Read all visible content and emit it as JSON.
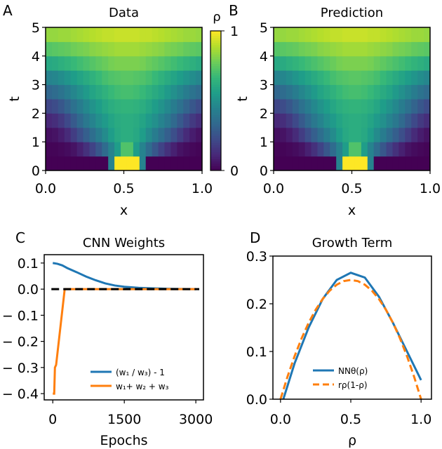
{
  "chart_data": [
    {
      "panel": "A",
      "type": "heatmap",
      "title": "Data",
      "xlabel": "x",
      "ylabel": "t",
      "xlim": [
        0,
        1
      ],
      "ylim": [
        0,
        5
      ],
      "xticks": [
        "0.0",
        "0.5",
        "1.0"
      ],
      "yticks": [
        "0",
        "1",
        "2",
        "3",
        "4",
        "5"
      ],
      "colormap": "viridis",
      "colorbar": {
        "label": "ρ",
        "ticks": [
          "0",
          "1"
        ],
        "range": [
          0,
          1
        ]
      },
      "z_rows_bottom_to_top": [
        [
          0,
          0,
          0,
          0,
          0,
          0,
          0,
          0,
          0,
          0,
          0.45,
          1,
          1,
          1,
          1,
          0.45,
          0,
          0,
          0,
          0,
          0,
          0,
          0,
          0,
          0
        ],
        [
          0.01,
          0.01,
          0.02,
          0.03,
          0.05,
          0.09,
          0.14,
          0.2,
          0.27,
          0.35,
          0.45,
          0.55,
          0.72,
          0.72,
          0.55,
          0.45,
          0.35,
          0.27,
          0.2,
          0.14,
          0.09,
          0.05,
          0.03,
          0.02,
          0.01
        ],
        [
          0.04,
          0.05,
          0.08,
          0.12,
          0.18,
          0.24,
          0.3,
          0.36,
          0.42,
          0.48,
          0.55,
          0.6,
          0.62,
          0.62,
          0.6,
          0.55,
          0.48,
          0.42,
          0.36,
          0.3,
          0.24,
          0.18,
          0.12,
          0.08,
          0.05
        ],
        [
          0.11,
          0.13,
          0.17,
          0.22,
          0.28,
          0.34,
          0.4,
          0.45,
          0.5,
          0.54,
          0.58,
          0.61,
          0.62,
          0.62,
          0.61,
          0.58,
          0.54,
          0.5,
          0.45,
          0.4,
          0.34,
          0.28,
          0.22,
          0.17,
          0.13
        ],
        [
          0.21,
          0.23,
          0.27,
          0.32,
          0.37,
          0.42,
          0.47,
          0.51,
          0.55,
          0.59,
          0.62,
          0.64,
          0.65,
          0.65,
          0.64,
          0.62,
          0.59,
          0.55,
          0.51,
          0.47,
          0.42,
          0.37,
          0.32,
          0.27,
          0.23
        ],
        [
          0.33,
          0.35,
          0.38,
          0.42,
          0.46,
          0.5,
          0.54,
          0.58,
          0.61,
          0.64,
          0.67,
          0.69,
          0.7,
          0.7,
          0.69,
          0.67,
          0.64,
          0.61,
          0.58,
          0.54,
          0.5,
          0.46,
          0.42,
          0.38,
          0.35
        ],
        [
          0.45,
          0.46,
          0.49,
          0.52,
          0.55,
          0.58,
          0.61,
          0.64,
          0.67,
          0.7,
          0.72,
          0.73,
          0.74,
          0.74,
          0.73,
          0.72,
          0.7,
          0.67,
          0.64,
          0.61,
          0.58,
          0.55,
          0.52,
          0.49,
          0.46
        ],
        [
          0.6,
          0.61,
          0.63,
          0.65,
          0.67,
          0.69,
          0.71,
          0.73,
          0.75,
          0.77,
          0.79,
          0.8,
          0.8,
          0.8,
          0.8,
          0.79,
          0.77,
          0.75,
          0.73,
          0.71,
          0.69,
          0.67,
          0.65,
          0.63,
          0.61
        ],
        [
          0.73,
          0.74,
          0.75,
          0.76,
          0.78,
          0.79,
          0.8,
          0.82,
          0.83,
          0.84,
          0.85,
          0.86,
          0.86,
          0.86,
          0.86,
          0.85,
          0.84,
          0.83,
          0.82,
          0.8,
          0.79,
          0.78,
          0.76,
          0.75,
          0.74
        ],
        [
          0.84,
          0.84,
          0.85,
          0.85,
          0.86,
          0.87,
          0.88,
          0.89,
          0.9,
          0.91,
          0.91,
          0.92,
          0.92,
          0.92,
          0.92,
          0.91,
          0.91,
          0.9,
          0.89,
          0.88,
          0.87,
          0.86,
          0.85,
          0.85,
          0.84
        ]
      ]
    },
    {
      "panel": "B",
      "type": "heatmap",
      "title": "Prediction",
      "xlabel": "x",
      "ylabel": "t",
      "xlim": [
        0,
        1
      ],
      "ylim": [
        0,
        5
      ],
      "xticks": [
        "0.0",
        "0.5",
        "1.0"
      ],
      "yticks": [
        "0",
        "1",
        "2",
        "3",
        "4",
        "5"
      ],
      "colormap": "viridis",
      "z_rows_bottom_to_top": [
        [
          0,
          0,
          0,
          0,
          0,
          0,
          0,
          0,
          0,
          0,
          0.45,
          1,
          1,
          1,
          1,
          0.45,
          0,
          0,
          0,
          0,
          0,
          0,
          0,
          0,
          0
        ],
        [
          0.01,
          0.01,
          0.02,
          0.03,
          0.05,
          0.09,
          0.14,
          0.2,
          0.27,
          0.35,
          0.45,
          0.55,
          0.72,
          0.72,
          0.55,
          0.45,
          0.35,
          0.27,
          0.2,
          0.14,
          0.09,
          0.05,
          0.03,
          0.02,
          0.01
        ],
        [
          0.04,
          0.05,
          0.08,
          0.12,
          0.18,
          0.24,
          0.3,
          0.36,
          0.42,
          0.48,
          0.55,
          0.6,
          0.62,
          0.62,
          0.6,
          0.55,
          0.48,
          0.42,
          0.36,
          0.3,
          0.24,
          0.18,
          0.12,
          0.08,
          0.05
        ],
        [
          0.11,
          0.13,
          0.17,
          0.22,
          0.28,
          0.34,
          0.4,
          0.45,
          0.5,
          0.54,
          0.58,
          0.61,
          0.62,
          0.62,
          0.61,
          0.58,
          0.54,
          0.5,
          0.45,
          0.4,
          0.34,
          0.28,
          0.22,
          0.17,
          0.13
        ],
        [
          0.21,
          0.23,
          0.27,
          0.32,
          0.37,
          0.42,
          0.47,
          0.51,
          0.55,
          0.59,
          0.62,
          0.64,
          0.65,
          0.65,
          0.64,
          0.62,
          0.59,
          0.55,
          0.51,
          0.47,
          0.42,
          0.37,
          0.32,
          0.27,
          0.23
        ],
        [
          0.33,
          0.35,
          0.38,
          0.42,
          0.46,
          0.5,
          0.54,
          0.58,
          0.61,
          0.64,
          0.67,
          0.69,
          0.7,
          0.7,
          0.69,
          0.67,
          0.64,
          0.61,
          0.58,
          0.54,
          0.5,
          0.46,
          0.42,
          0.38,
          0.35
        ],
        [
          0.45,
          0.46,
          0.49,
          0.52,
          0.55,
          0.58,
          0.61,
          0.64,
          0.67,
          0.7,
          0.72,
          0.73,
          0.74,
          0.74,
          0.73,
          0.72,
          0.7,
          0.67,
          0.64,
          0.61,
          0.58,
          0.55,
          0.52,
          0.49,
          0.46
        ],
        [
          0.6,
          0.61,
          0.63,
          0.65,
          0.67,
          0.69,
          0.71,
          0.73,
          0.75,
          0.77,
          0.79,
          0.8,
          0.8,
          0.8,
          0.8,
          0.79,
          0.77,
          0.75,
          0.73,
          0.71,
          0.69,
          0.67,
          0.65,
          0.63,
          0.61
        ],
        [
          0.73,
          0.74,
          0.75,
          0.76,
          0.78,
          0.79,
          0.8,
          0.82,
          0.83,
          0.84,
          0.85,
          0.86,
          0.86,
          0.86,
          0.86,
          0.85,
          0.84,
          0.83,
          0.82,
          0.8,
          0.79,
          0.78,
          0.76,
          0.75,
          0.74
        ],
        [
          0.84,
          0.84,
          0.85,
          0.85,
          0.86,
          0.87,
          0.88,
          0.89,
          0.9,
          0.91,
          0.91,
          0.92,
          0.92,
          0.92,
          0.92,
          0.91,
          0.91,
          0.9,
          0.89,
          0.88,
          0.87,
          0.86,
          0.85,
          0.85,
          0.84
        ]
      ]
    },
    {
      "panel": "C",
      "type": "line",
      "title": "CNN Weights",
      "xlabel": "Epochs",
      "ylabel": "",
      "xlim": [
        -180,
        3160
      ],
      "ylim": [
        -0.424,
        0.132
      ],
      "xticks": [
        0,
        1500,
        3000
      ],
      "xtick_labels": [
        "0",
        "1500",
        "3000"
      ],
      "yticks": [
        0.1,
        0.0,
        -0.1,
        -0.2,
        -0.3,
        -0.4
      ],
      "ytick_labels": [
        "0.1",
        "0.0",
        "− 0.1",
        "− 0.2",
        "− 0.3",
        "− 0.4"
      ],
      "legend": "lower-right",
      "reference_line": {
        "y": 0,
        "style": "dashed",
        "color": "#000000"
      },
      "series": [
        {
          "name": "(w₁ / w₃) - 1",
          "color": "#1f77b4",
          "style": "solid",
          "x": [
            0,
            100,
            200,
            300,
            500,
            700,
            900,
            1100,
            1300,
            1500,
            1800,
            2100,
            2500,
            3000
          ],
          "y": [
            0.1,
            0.097,
            0.091,
            0.081,
            0.065,
            0.048,
            0.034,
            0.022,
            0.014,
            0.009,
            0.005,
            0.003,
            0.001,
            0
          ]
        },
        {
          "name": "w₁+ w₂ + w₃",
          "color": "#ff7f0e",
          "style": "solid-then-dashed",
          "x": [
            0,
            30,
            45,
            70,
            250,
            3000
          ],
          "y": [
            -0.4,
            -0.4,
            -0.3,
            -0.29,
            0,
            0
          ]
        }
      ]
    },
    {
      "panel": "D",
      "type": "line",
      "title": "Growth Term",
      "xlabel": "ρ",
      "ylabel": "",
      "xlim": [
        -0.054,
        1.074
      ],
      "ylim": [
        0,
        0.3
      ],
      "xticks": [
        0,
        0.5,
        1.0
      ],
      "xtick_labels": [
        "0.0",
        "0.5",
        "1.0"
      ],
      "yticks": [
        0,
        0.1,
        0.2,
        0.3
      ],
      "ytick_labels": [
        "0.0",
        "0.1",
        "0.2",
        "0.3"
      ],
      "legend": "lower-center",
      "series": [
        {
          "name": "NNθ(ρ)",
          "color": "#1f77b4",
          "style": "solid",
          "x": [
            0.02,
            0.1,
            0.2,
            0.3,
            0.4,
            0.5,
            0.6,
            0.7,
            0.8,
            0.9,
            1.0
          ],
          "y": [
            0,
            0.075,
            0.15,
            0.21,
            0.25,
            0.265,
            0.255,
            0.215,
            0.16,
            0.1,
            0.04
          ]
        },
        {
          "name": "rρ(1-ρ)",
          "color": "#ff7f0e",
          "style": "dashed",
          "x": [
            0,
            0.05,
            0.1,
            0.15,
            0.2,
            0.25,
            0.3,
            0.35,
            0.4,
            0.45,
            0.5,
            0.55,
            0.6,
            0.65,
            0.7,
            0.75,
            0.8,
            0.85,
            0.9,
            0.95,
            1.0
          ],
          "y": [
            0,
            0.0475,
            0.09,
            0.1275,
            0.16,
            0.1875,
            0.21,
            0.2275,
            0.24,
            0.2475,
            0.25,
            0.2475,
            0.24,
            0.2275,
            0.21,
            0.1875,
            0.16,
            0.1275,
            0.09,
            0.0475,
            0
          ]
        }
      ]
    }
  ],
  "panel_labels": {
    "a": "A",
    "b": "B",
    "c": "C",
    "d": "D"
  }
}
